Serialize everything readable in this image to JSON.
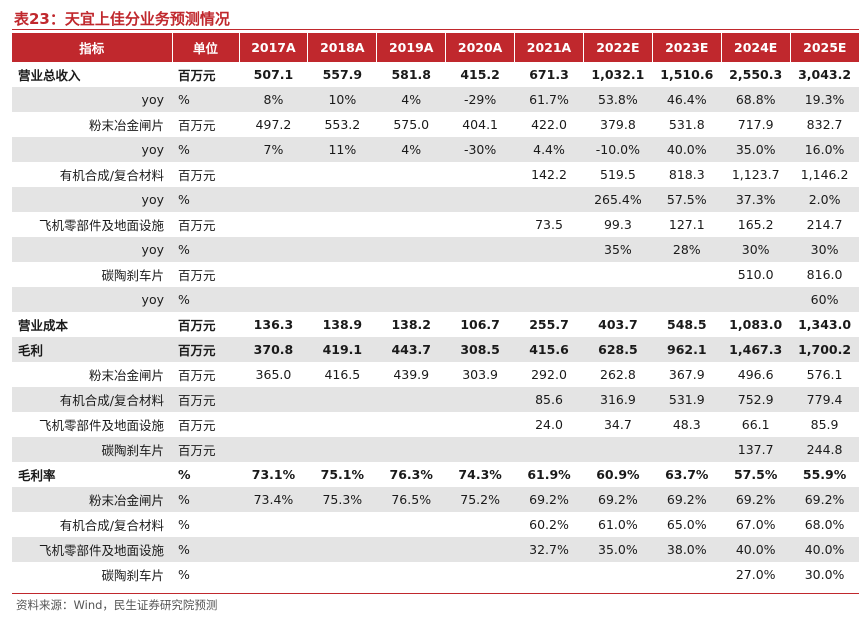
{
  "title": "表23：天宜上佳分业务预测情况",
  "header": {
    "label_col": "指标",
    "unit_col": "单位",
    "years": [
      "2017A",
      "2018A",
      "2019A",
      "2020A",
      "2021A",
      "2022E",
      "2023E",
      "2024E",
      "2025E"
    ]
  },
  "rows": [
    {
      "label": "营业总收入",
      "unit": "百万元",
      "bold": true,
      "shade": false,
      "values": [
        "507.1",
        "557.9",
        "581.8",
        "415.2",
        "671.3",
        "1,032.1",
        "1,510.6",
        "2,550.3",
        "3,043.2"
      ]
    },
    {
      "label": "yoy",
      "unit": "%",
      "bold": false,
      "shade": true,
      "values": [
        "8%",
        "10%",
        "4%",
        "-29%",
        "61.7%",
        "53.8%",
        "46.4%",
        "68.8%",
        "19.3%"
      ]
    },
    {
      "label": "粉末冶金闸片",
      "unit": "百万元",
      "bold": false,
      "shade": false,
      "values": [
        "497.2",
        "553.2",
        "575.0",
        "404.1",
        "422.0",
        "379.8",
        "531.8",
        "717.9",
        "832.7"
      ]
    },
    {
      "label": "yoy",
      "unit": "%",
      "bold": false,
      "shade": true,
      "values": [
        "7%",
        "11%",
        "4%",
        "-30%",
        "4.4%",
        "-10.0%",
        "40.0%",
        "35.0%",
        "16.0%"
      ]
    },
    {
      "label": "有机合成/复合材料",
      "unit": "百万元",
      "bold": false,
      "shade": false,
      "values": [
        "",
        "",
        "",
        "",
        "142.2",
        "519.5",
        "818.3",
        "1,123.7",
        "1,146.2"
      ]
    },
    {
      "label": "yoy",
      "unit": "%",
      "bold": false,
      "shade": true,
      "values": [
        "",
        "",
        "",
        "",
        "",
        "265.4%",
        "57.5%",
        "37.3%",
        "2.0%"
      ]
    },
    {
      "label": "飞机零部件及地面设施",
      "unit": "百万元",
      "bold": false,
      "shade": false,
      "values": [
        "",
        "",
        "",
        "",
        "73.5",
        "99.3",
        "127.1",
        "165.2",
        "214.7"
      ]
    },
    {
      "label": "yoy",
      "unit": "%",
      "bold": false,
      "shade": true,
      "values": [
        "",
        "",
        "",
        "",
        "",
        "35%",
        "28%",
        "30%",
        "30%"
      ]
    },
    {
      "label": "碳陶刹车片",
      "unit": "百万元",
      "bold": false,
      "shade": false,
      "values": [
        "",
        "",
        "",
        "",
        "",
        "",
        "",
        "510.0",
        "816.0"
      ]
    },
    {
      "label": "yoy",
      "unit": "%",
      "bold": false,
      "shade": true,
      "values": [
        "",
        "",
        "",
        "",
        "",
        "",
        "",
        "",
        "60%"
      ]
    },
    {
      "label": "营业成本",
      "unit": "百万元",
      "bold": true,
      "shade": false,
      "values": [
        "136.3",
        "138.9",
        "138.2",
        "106.7",
        "255.7",
        "403.7",
        "548.5",
        "1,083.0",
        "1,343.0"
      ]
    },
    {
      "label": "毛利",
      "unit": "百万元",
      "bold": true,
      "shade": true,
      "values": [
        "370.8",
        "419.1",
        "443.7",
        "308.5",
        "415.6",
        "628.5",
        "962.1",
        "1,467.3",
        "1,700.2"
      ]
    },
    {
      "label": "粉末冶金闸片",
      "unit": "百万元",
      "bold": false,
      "shade": false,
      "values": [
        "365.0",
        "416.5",
        "439.9",
        "303.9",
        "292.0",
        "262.8",
        "367.9",
        "496.6",
        "576.1"
      ]
    },
    {
      "label": "有机合成/复合材料",
      "unit": "百万元",
      "bold": false,
      "shade": true,
      "values": [
        "",
        "",
        "",
        "",
        "85.6",
        "316.9",
        "531.9",
        "752.9",
        "779.4"
      ]
    },
    {
      "label": "飞机零部件及地面设施",
      "unit": "百万元",
      "bold": false,
      "shade": false,
      "values": [
        "",
        "",
        "",
        "",
        "24.0",
        "34.7",
        "48.3",
        "66.1",
        "85.9"
      ]
    },
    {
      "label": "碳陶刹车片",
      "unit": "百万元",
      "bold": false,
      "shade": true,
      "values": [
        "",
        "",
        "",
        "",
        "",
        "",
        "",
        "137.7",
        "244.8"
      ]
    },
    {
      "label": "毛利率",
      "unit": "%",
      "bold": true,
      "shade": false,
      "values": [
        "73.1%",
        "75.1%",
        "76.3%",
        "74.3%",
        "61.9%",
        "60.9%",
        "63.7%",
        "57.5%",
        "55.9%"
      ]
    },
    {
      "label": "粉末冶金闸片",
      "unit": "%",
      "bold": false,
      "shade": true,
      "values": [
        "73.4%",
        "75.3%",
        "76.5%",
        "75.2%",
        "69.2%",
        "69.2%",
        "69.2%",
        "69.2%",
        "69.2%"
      ]
    },
    {
      "label": "有机合成/复合材料",
      "unit": "%",
      "bold": false,
      "shade": false,
      "values": [
        "",
        "",
        "",
        "",
        "60.2%",
        "61.0%",
        "65.0%",
        "67.0%",
        "68.0%"
      ]
    },
    {
      "label": "飞机零部件及地面设施",
      "unit": "%",
      "bold": false,
      "shade": true,
      "values": [
        "",
        "",
        "",
        "",
        "32.7%",
        "35.0%",
        "38.0%",
        "40.0%",
        "40.0%"
      ]
    },
    {
      "label": "碳陶刹车片",
      "unit": "%",
      "bold": false,
      "shade": false,
      "values": [
        "",
        "",
        "",
        "",
        "",
        "",
        "",
        "27.0%",
        "30.0%"
      ]
    }
  ],
  "source": "资料来源：Wind，民生证券研究院预测",
  "colors": {
    "accent": "#c0282d",
    "shade": "#e4e4e4"
  }
}
